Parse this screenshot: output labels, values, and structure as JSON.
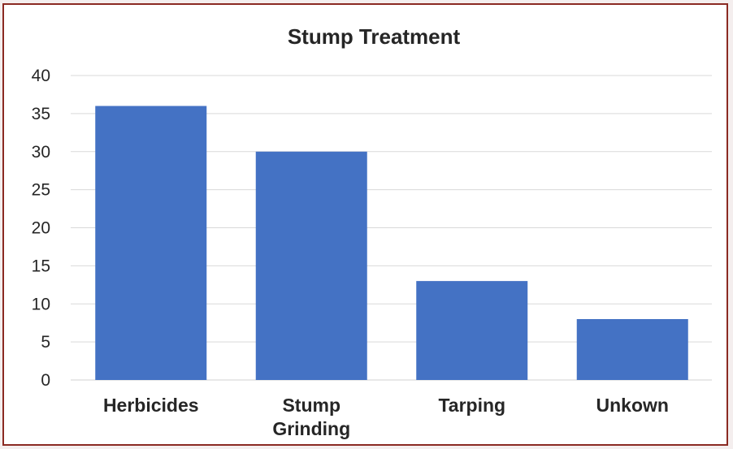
{
  "chart_data": {
    "type": "bar",
    "title": "Stump Treatment",
    "categories": [
      [
        "Herbicides"
      ],
      [
        "Stump",
        "Grinding"
      ],
      [
        "Tarping"
      ],
      [
        "Unkown"
      ]
    ],
    "values": [
      36,
      30,
      13,
      8
    ],
    "ylim": [
      0,
      40
    ],
    "yticks": [
      0,
      5,
      10,
      15,
      20,
      25,
      30,
      35,
      40
    ],
    "grid": true,
    "bar_color": "#4472c4"
  }
}
